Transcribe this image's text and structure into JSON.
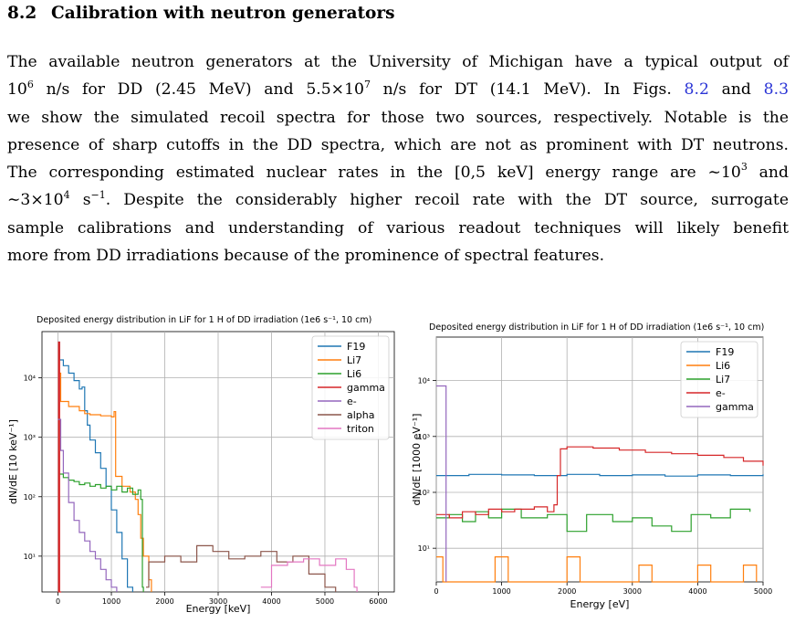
{
  "section": {
    "number": "8.2",
    "title": "Calibration with neutron generators"
  },
  "paragraph": {
    "l1": "The available neutron generators at the University of Michigan have a typical output of",
    "l2a": "10",
    "l2b": "6",
    "l2c": " n/s for DD (2.45 MeV) and 5.5×10",
    "l2d": "7",
    "l2e": " n/s for DT (14.1 MeV). In Figs. ",
    "l2f": "8.2",
    "l2g": " and ",
    "l2h": "8.3",
    "l3": "we show the simulated recoil spectra for those two sources, respectively.  Notable is the",
    "l4": "presence of sharp cutoffs in the DD spectra, which are not as prominent with DT neutrons.",
    "l5a": "The corresponding estimated nuclear rates in the [0,5 keV] energy range are ∼10",
    "l5b": "3",
    "l5c": " and",
    "l6a": "∼3×10",
    "l6b": "4",
    "l6c": " s",
    "l6d": "−1",
    "l6e": ".  Despite the considerably higher recoil rate with the DT source, surrogate",
    "l7": "sample calibrations and understanding of various readout techniques will likely benefit",
    "l8": "more from DD irradiations because of the prominence of spectral features."
  },
  "chart_data": [
    {
      "type": "line",
      "title": "Deposited energy distribution in LiF for 1 H of DD irradiation (1e6 s⁻¹, 10 cm)",
      "xlabel": "Energy [keV]",
      "ylabel": "dN/dE [10 keV⁻¹]",
      "xlim": [
        -300,
        6300
      ],
      "ylim": [
        2.5,
        60000
      ],
      "yscale": "log",
      "xticks": [
        0,
        1000,
        2000,
        3000,
        4000,
        5000,
        6000
      ],
      "xtick_labels": [
        "0",
        "1000",
        "2000",
        "3000",
        "4000",
        "5000",
        "6000"
      ],
      "yticks": [
        10,
        100,
        1000,
        10000
      ],
      "ytick_labels": [
        "10¹",
        "10²",
        "10³",
        "10⁴"
      ],
      "grid": true,
      "legend": "top-right",
      "series": [
        {
          "name": "F19",
          "color": "#1f77b4",
          "points": [
            [
              0,
              40000
            ],
            [
              30,
              20000
            ],
            [
              100,
              16000
            ],
            [
              200,
              12000
            ],
            [
              300,
              9000
            ],
            [
              400,
              6500
            ],
            [
              450,
              7000
            ],
            [
              500,
              2800
            ],
            [
              550,
              1600
            ],
            [
              600,
              900
            ],
            [
              700,
              550
            ],
            [
              800,
              300
            ],
            [
              900,
              150
            ],
            [
              1000,
              60
            ],
            [
              1100,
              25
            ],
            [
              1200,
              9
            ],
            [
              1300,
              3
            ],
            [
              1400,
              2.5
            ]
          ]
        },
        {
          "name": "Li7",
          "color": "#ff7f0e",
          "points": [
            [
              0,
              12000
            ],
            [
              50,
              4000
            ],
            [
              200,
              3300
            ],
            [
              400,
              2800
            ],
            [
              500,
              2500
            ],
            [
              600,
              2400
            ],
            [
              800,
              2300
            ],
            [
              1000,
              2200
            ],
            [
              1050,
              2700
            ],
            [
              1080,
              220
            ],
            [
              1200,
              150
            ],
            [
              1350,
              120
            ],
            [
              1450,
              90
            ],
            [
              1500,
              50
            ],
            [
              1550,
              20
            ],
            [
              1600,
              10
            ],
            [
              1700,
              4
            ],
            [
              1750,
              2.5
            ]
          ]
        },
        {
          "name": "Li6",
          "color": "#2ca02c",
          "points": [
            [
              0,
              240
            ],
            [
              100,
              210
            ],
            [
              200,
              190
            ],
            [
              300,
              180
            ],
            [
              400,
              160
            ],
            [
              500,
              170
            ],
            [
              600,
              150
            ],
            [
              700,
              160
            ],
            [
              800,
              140
            ],
            [
              900,
              150
            ],
            [
              1000,
              130
            ],
            [
              1100,
              150
            ],
            [
              1200,
              120
            ],
            [
              1300,
              140
            ],
            [
              1400,
              110
            ],
            [
              1500,
              130
            ],
            [
              1550,
              90
            ],
            [
              1580,
              3
            ],
            [
              1600,
              2.5
            ]
          ]
        },
        {
          "name": "gamma",
          "color": "#d62728",
          "points": [
            [
              0,
              2.5
            ],
            [
              10,
              40000
            ],
            [
              30,
              2.5
            ],
            [
              60,
              2.5
            ]
          ]
        },
        {
          "name": "e-",
          "color": "#9467bd",
          "points": [
            [
              0,
              2000
            ],
            [
              50,
              600
            ],
            [
              100,
              250
            ],
            [
              200,
              80
            ],
            [
              300,
              40
            ],
            [
              400,
              25
            ],
            [
              500,
              18
            ],
            [
              600,
              12
            ],
            [
              700,
              9
            ],
            [
              800,
              6
            ],
            [
              900,
              4
            ],
            [
              1000,
              3
            ],
            [
              1100,
              2.5
            ]
          ]
        },
        {
          "name": "alpha",
          "color": "#8c564b",
          "points": [
            [
              1650,
              3
            ],
            [
              1700,
              8
            ],
            [
              2000,
              10
            ],
            [
              2300,
              8
            ],
            [
              2600,
              15
            ],
            [
              2900,
              12
            ],
            [
              3200,
              9
            ],
            [
              3500,
              10
            ],
            [
              3800,
              12
            ],
            [
              4100,
              8
            ],
            [
              4400,
              10
            ],
            [
              4700,
              5
            ],
            [
              5000,
              3
            ],
            [
              5200,
              2.5
            ]
          ]
        },
        {
          "name": "triton",
          "color": "#e377c2",
          "points": [
            [
              3800,
              3
            ],
            [
              4000,
              7
            ],
            [
              4300,
              8
            ],
            [
              4600,
              9
            ],
            [
              4900,
              7
            ],
            [
              5200,
              9
            ],
            [
              5400,
              6
            ],
            [
              5550,
              3
            ],
            [
              5600,
              2.5
            ]
          ]
        }
      ]
    },
    {
      "type": "line",
      "title": "Deposited energy distribution in LiF for 1 H of DD irradiation (1e6 s⁻¹, 10 cm)",
      "xlabel": "Energy [eV]",
      "ylabel": "dN/dE [1000 eV⁻¹]",
      "xlim": [
        0,
        5000
      ],
      "ylim": [
        2.5,
        60000
      ],
      "yscale": "log",
      "xticks": [
        0,
        1000,
        2000,
        3000,
        4000,
        5000
      ],
      "xtick_labels": [
        "0",
        "1000",
        "2000",
        "3000",
        "4000",
        "5000"
      ],
      "yticks": [
        10,
        100,
        1000,
        10000
      ],
      "ytick_labels": [
        "10¹",
        "10²",
        "10³",
        "10⁴"
      ],
      "grid": true,
      "legend": "top-right",
      "series": [
        {
          "name": "F19",
          "color": "#1f77b4",
          "points": [
            [
              0,
              200
            ],
            [
              500,
              210
            ],
            [
              1000,
              205
            ],
            [
              1500,
              200
            ],
            [
              2000,
              210
            ],
            [
              2500,
              200
            ],
            [
              3000,
              205
            ],
            [
              3500,
              195
            ],
            [
              4000,
              205
            ],
            [
              4500,
              200
            ],
            [
              5000,
              210
            ]
          ]
        },
        {
          "name": "Li6",
          "color": "#ff7f0e",
          "points": [
            [
              0,
              7
            ],
            [
              100,
              2.5
            ],
            [
              800,
              2.5
            ],
            [
              900,
              7
            ],
            [
              1100,
              2.5
            ],
            [
              1900,
              2.5
            ],
            [
              2000,
              7
            ],
            [
              2200,
              2.5
            ],
            [
              3000,
              2.5
            ],
            [
              3100,
              5
            ],
            [
              3300,
              2.5
            ],
            [
              3900,
              2.5
            ],
            [
              4000,
              5
            ],
            [
              4200,
              2.5
            ],
            [
              4600,
              2.5
            ],
            [
              4700,
              5
            ],
            [
              4900,
              2.5
            ]
          ]
        },
        {
          "name": "Li7",
          "color": "#2ca02c",
          "points": [
            [
              0,
              35
            ],
            [
              200,
              40
            ],
            [
              400,
              30
            ],
            [
              600,
              45
            ],
            [
              800,
              35
            ],
            [
              1000,
              50
            ],
            [
              1300,
              35
            ],
            [
              1700,
              40
            ],
            [
              1900,
              40
            ],
            [
              2000,
              20
            ],
            [
              2300,
              40
            ],
            [
              2700,
              30
            ],
            [
              3000,
              35
            ],
            [
              3300,
              25
            ],
            [
              3600,
              20
            ],
            [
              3900,
              40
            ],
            [
              4200,
              35
            ],
            [
              4500,
              50
            ],
            [
              4800,
              45
            ]
          ]
        },
        {
          "name": "e-",
          "color": "#d62728",
          "points": [
            [
              0,
              40
            ],
            [
              200,
              35
            ],
            [
              400,
              45
            ],
            [
              600,
              40
            ],
            [
              800,
              50
            ],
            [
              1000,
              45
            ],
            [
              1200,
              50
            ],
            [
              1500,
              55
            ],
            [
              1700,
              45
            ],
            [
              1800,
              60
            ],
            [
              1850,
              200
            ],
            [
              1900,
              600
            ],
            [
              2000,
              650
            ],
            [
              2400,
              620
            ],
            [
              2800,
              570
            ],
            [
              3200,
              520
            ],
            [
              3600,
              490
            ],
            [
              4000,
              460
            ],
            [
              4400,
              420
            ],
            [
              4700,
              360
            ],
            [
              5000,
              300
            ]
          ]
        },
        {
          "name": "gamma",
          "color": "#9467bd",
          "points": [
            [
              0,
              8000
            ],
            [
              100,
              8000
            ],
            [
              150,
              2.5
            ]
          ]
        }
      ]
    }
  ]
}
